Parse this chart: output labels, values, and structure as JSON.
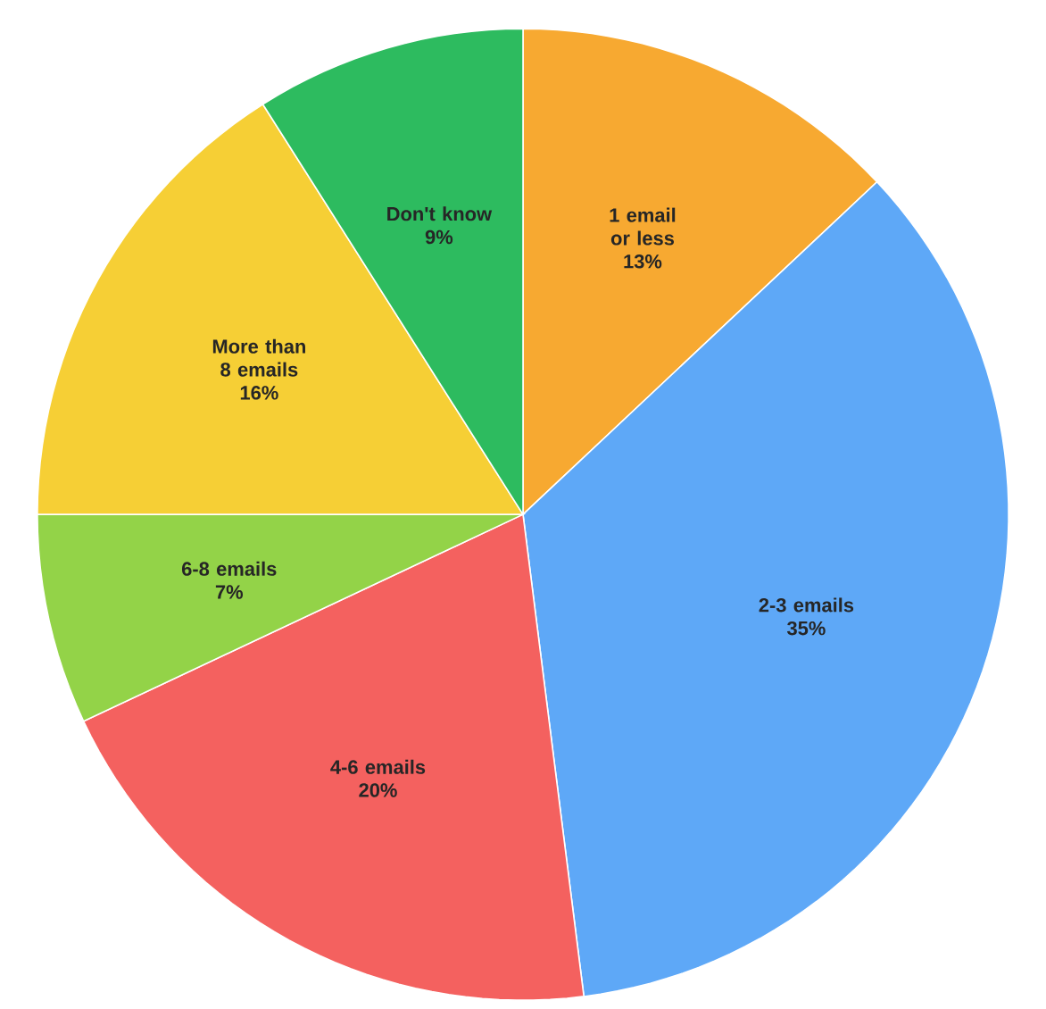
{
  "chart_data": {
    "type": "pie",
    "categories": [
      "1 email or less",
      "2-3 emails",
      "4-6 emails",
      "6-8 emails",
      "More than 8 emails",
      "Don't know"
    ],
    "values": [
      13,
      35,
      20,
      7,
      16,
      9
    ],
    "value_labels": [
      "13%",
      "35%",
      "20%",
      "7%",
      "16%",
      "9%"
    ],
    "colors": [
      "#f7a931",
      "#5ea8f7",
      "#f4615f",
      "#93d348",
      "#f6cf35",
      "#2dbb5f"
    ]
  }
}
